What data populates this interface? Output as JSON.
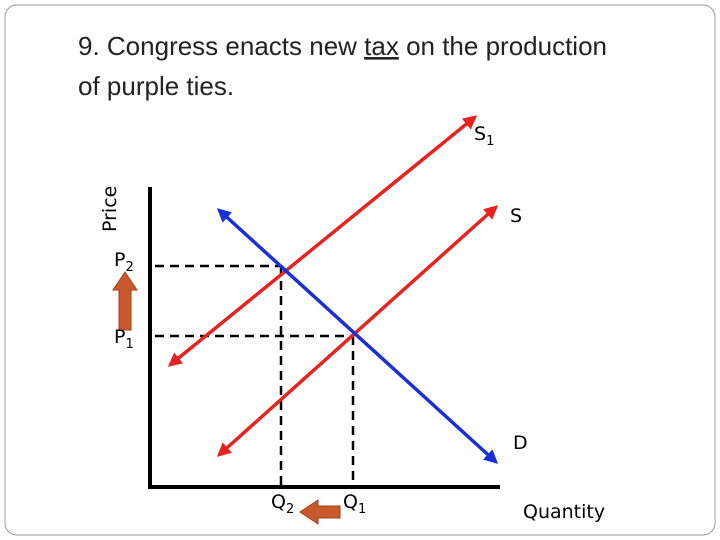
{
  "title": {
    "line1_start": "9. Congress enacts new ",
    "underlined": "tax",
    "line1_end": " on the production",
    "line2": "of purple ties."
  },
  "axes": {
    "y_label": "Price",
    "x_label": "Quantity"
  },
  "curves": {
    "new_supply": {
      "main": "S",
      "sub": "1"
    },
    "supply": {
      "main": "S"
    },
    "demand": {
      "main": "D"
    }
  },
  "prices": {
    "p2": {
      "main": "P",
      "sub": "2"
    },
    "p1": {
      "main": "P",
      "sub": "1"
    }
  },
  "quantities": {
    "q2": {
      "main": "Q",
      "sub": "2"
    },
    "q1": {
      "main": "Q",
      "sub": "1"
    }
  }
}
